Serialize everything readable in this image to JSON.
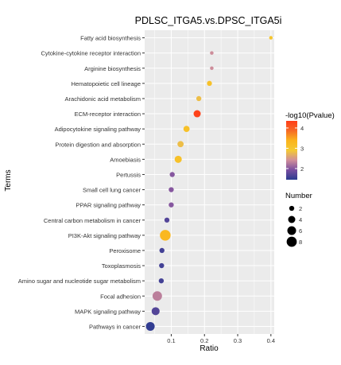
{
  "chart_data": {
    "type": "scatter",
    "title": "PDLSC_ITGA5.vs.DPSC_ITGA5i",
    "xlabel": "Ratio",
    "ylabel": "Terms",
    "xlim": [
      0.02,
      0.41
    ],
    "xticks": [
      0.1,
      0.2,
      0.3,
      0.4
    ],
    "xtick_labels": [
      "0.1",
      "0.2",
      "0.3",
      "0.4"
    ],
    "grid": true,
    "points": [
      {
        "term": "Fatty acid biosynthesis",
        "ratio": 0.4,
        "neg_log10_p": 3.0,
        "number": 1
      },
      {
        "term": "Cytokine-cytokine receptor interaction",
        "ratio": 0.222,
        "neg_log10_p": 2.4,
        "number": 1
      },
      {
        "term": "Arginine biosynthesis",
        "ratio": 0.222,
        "neg_log10_p": 2.4,
        "number": 1
      },
      {
        "term": "Hematopoietic cell lineage",
        "ratio": 0.215,
        "neg_log10_p": 3.1,
        "number": 2
      },
      {
        "term": "Arachidonic acid metabolism",
        "ratio": 0.183,
        "neg_log10_p": 2.8,
        "number": 2
      },
      {
        "term": "ECM-receptor interaction",
        "ratio": 0.178,
        "neg_log10_p": 4.3,
        "number": 4
      },
      {
        "term": "Adipocytokine signaling pathway",
        "ratio": 0.146,
        "neg_log10_p": 3.1,
        "number": 3
      },
      {
        "term": "Protein digestion and absorption",
        "ratio": 0.128,
        "neg_log10_p": 2.8,
        "number": 3
      },
      {
        "term": "Amoebiasis",
        "ratio": 0.121,
        "neg_log10_p": 3.1,
        "number": 4
      },
      {
        "term": "Pertussis",
        "ratio": 0.103,
        "neg_log10_p": 2.0,
        "number": 2
      },
      {
        "term": "Small cell lung cancer",
        "ratio": 0.1,
        "neg_log10_p": 2.0,
        "number": 2
      },
      {
        "term": "PPAR signaling pathway",
        "ratio": 0.1,
        "neg_log10_p": 2.0,
        "number": 2
      },
      {
        "term": "Central carbon metabolism in cancer",
        "ratio": 0.087,
        "neg_log10_p": 1.7,
        "number": 2
      },
      {
        "term": "PI3K-Akt signaling pathway",
        "ratio": 0.082,
        "neg_log10_p": 3.3,
        "number": 9
      },
      {
        "term": "Peroxisome",
        "ratio": 0.072,
        "neg_log10_p": 1.6,
        "number": 2
      },
      {
        "term": "Toxoplasmosis",
        "ratio": 0.071,
        "neg_log10_p": 1.6,
        "number": 2
      },
      {
        "term": "Amino sugar and nucleotide sugar metabolism",
        "ratio": 0.07,
        "neg_log10_p": 1.6,
        "number": 2
      },
      {
        "term": "Focal adhesion",
        "ratio": 0.058,
        "neg_log10_p": 2.3,
        "number": 7
      },
      {
        "term": "MAPK signaling pathway",
        "ratio": 0.053,
        "neg_log10_p": 1.7,
        "number": 5
      },
      {
        "term": "Pathways in cancer",
        "ratio": 0.037,
        "neg_log10_p": 1.5,
        "number": 6
      }
    ],
    "color_legend": {
      "title": "-log10(Pvalue)",
      "min": 1.45,
      "max": 4.35,
      "ticks": [
        2,
        3,
        4
      ],
      "tick_labels": [
        "2",
        "3",
        "4"
      ],
      "colors": [
        "#2a3b90",
        "#7a4ea0",
        "#d08f9a",
        "#f4ca33",
        "#fbb41c",
        "#f66a25",
        "#ff3d18"
      ]
    },
    "size_legend": {
      "title": "Number",
      "values": [
        2,
        4,
        6,
        8
      ],
      "labels": [
        "2",
        "4",
        "6",
        "8"
      ]
    },
    "panel_bg": "#ebebeb",
    "grid_color": "#ffffff"
  }
}
